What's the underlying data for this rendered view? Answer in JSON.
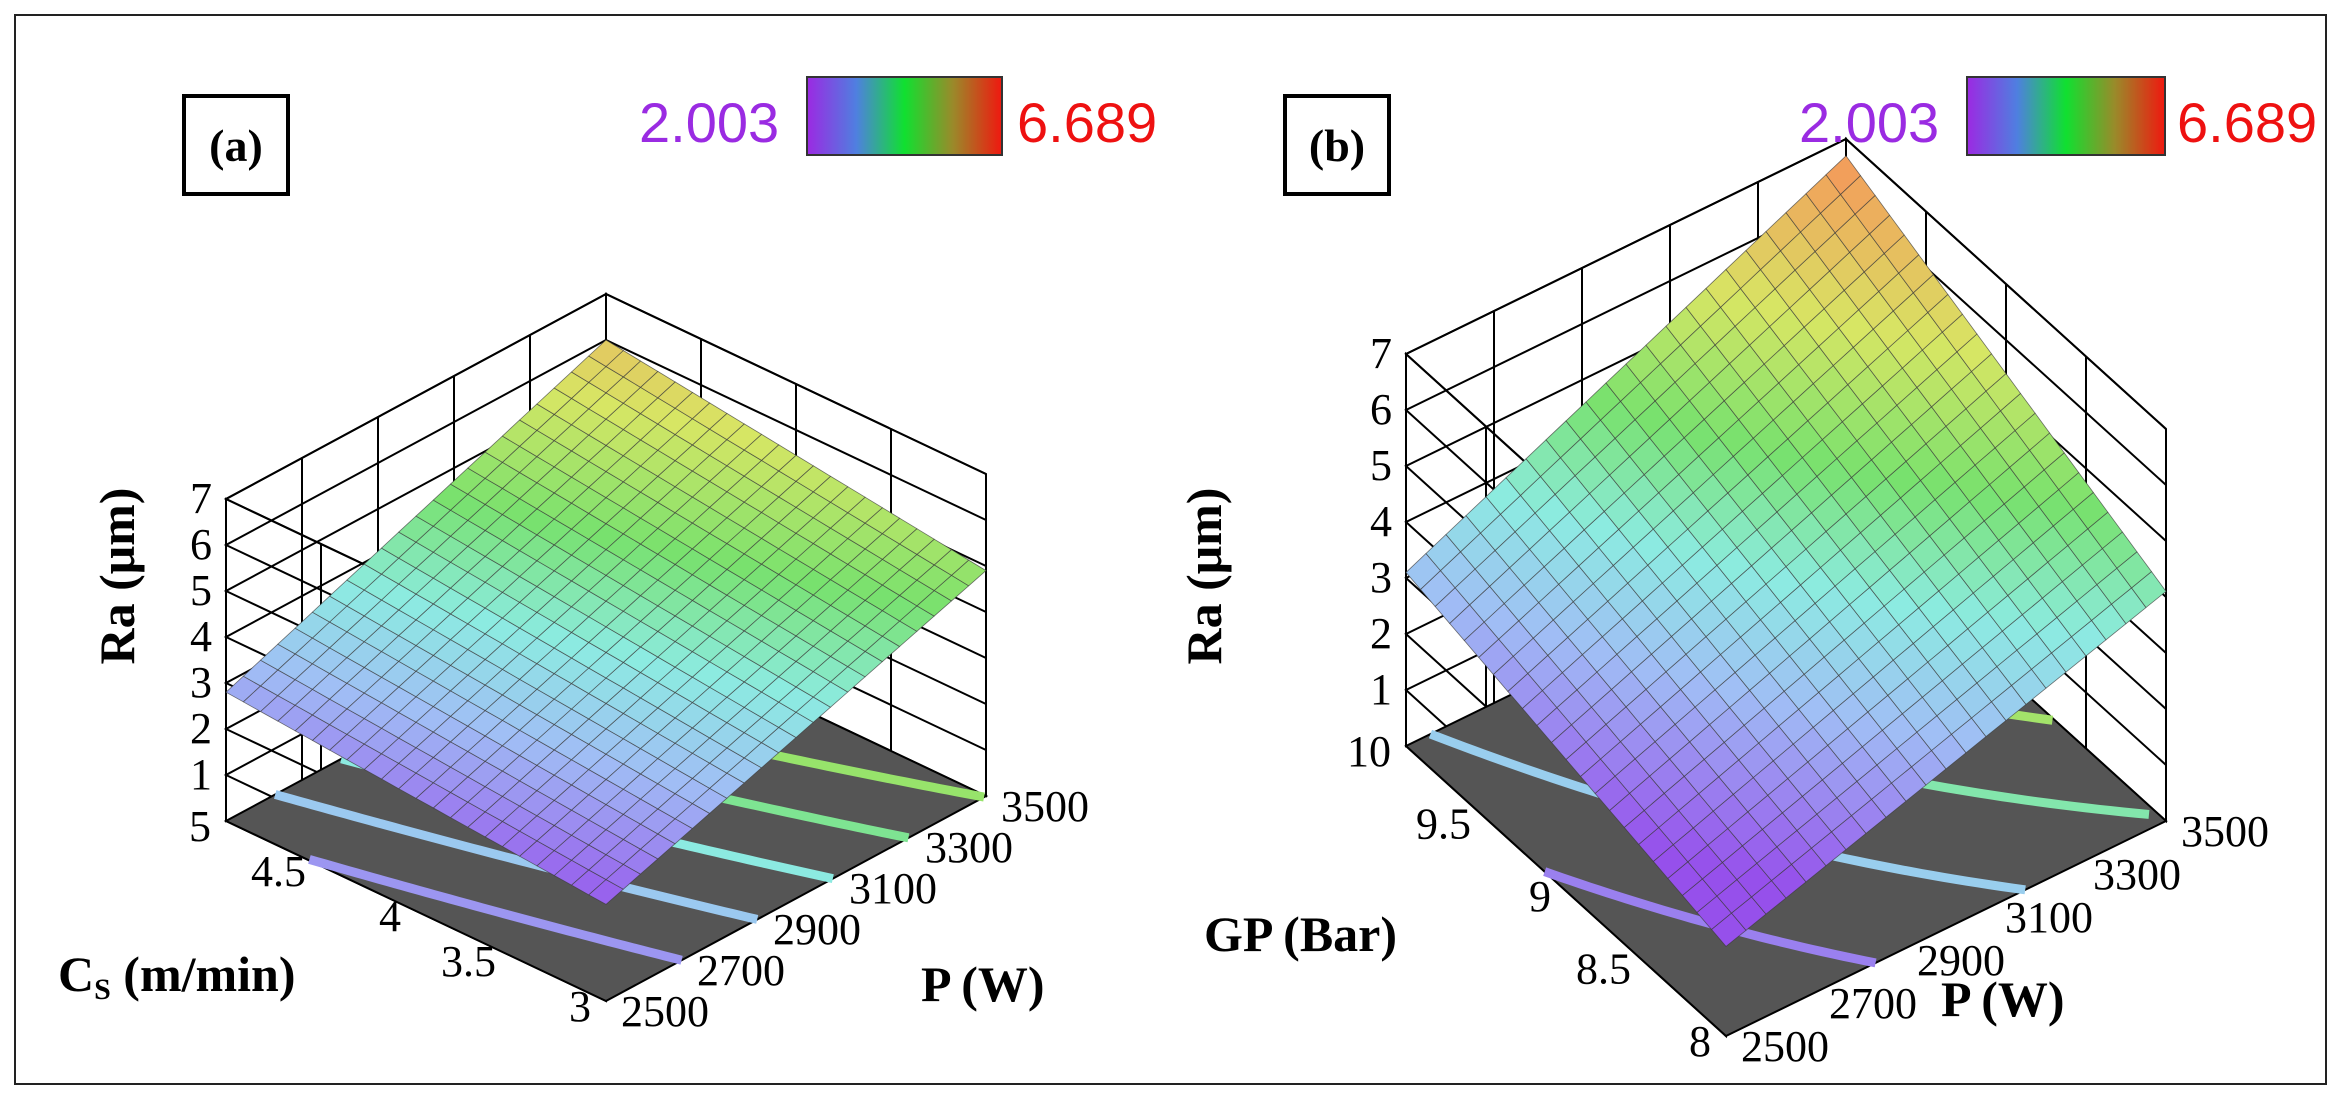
{
  "chart_data": [
    {
      "type": "surface",
      "panel_label": "(a)",
      "zlabel": "Ra (μm)",
      "xlabel": "P (W)",
      "ylabel_main": "C",
      "ylabel_sub": "S",
      "ylabel_rest": " (m/min)",
      "x_ticks": [
        "2500",
        "2700",
        "2900",
        "3100",
        "3300",
        "3500"
      ],
      "y_ticks": [
        "3",
        "3.5",
        "4",
        "4.5",
        "5"
      ],
      "z_ticks": [
        "1",
        "2",
        "3",
        "4",
        "5",
        "6",
        "7"
      ],
      "xlim": [
        2500,
        3500
      ],
      "ylim": [
        3,
        5
      ],
      "zlim": [
        0,
        7
      ],
      "colorbar": {
        "min": "2.003",
        "max": "6.689"
      },
      "corners": {
        "p2500_cs3": 2.1,
        "p3500_cs3": 4.9,
        "p2500_cs5": 2.8,
        "p3500_cs5": 6.0
      },
      "contour_lines_on_floor": 6
    },
    {
      "type": "surface",
      "panel_label": "(b)",
      "zlabel": "Ra (μm)",
      "xlabel": "P (W)",
      "ylabel_main": "GP (Bar)",
      "x_ticks": [
        "2500",
        "2700",
        "2900",
        "3100",
        "3300",
        "3500"
      ],
      "y_ticks": [
        "8",
        "8.5",
        "9",
        "9.5",
        "10"
      ],
      "z_ticks": [
        "1",
        "2",
        "3",
        "4",
        "5",
        "6",
        "7"
      ],
      "xlim": [
        2500,
        3500
      ],
      "ylim": [
        8,
        10
      ],
      "zlim": [
        0,
        7
      ],
      "colorbar": {
        "min": "2.003",
        "max": "6.689"
      },
      "corners": {
        "p2500_gp8": 1.6,
        "p3500_gp8": 4.1,
        "p2500_gp10": 3.1,
        "p3500_gp10": 6.7
      },
      "contour_lines_on_floor": 5
    }
  ],
  "colors": {
    "colorbar_min_text": "#9a2be2",
    "colorbar_max_text": "#ee1111",
    "floor": "#555555"
  }
}
